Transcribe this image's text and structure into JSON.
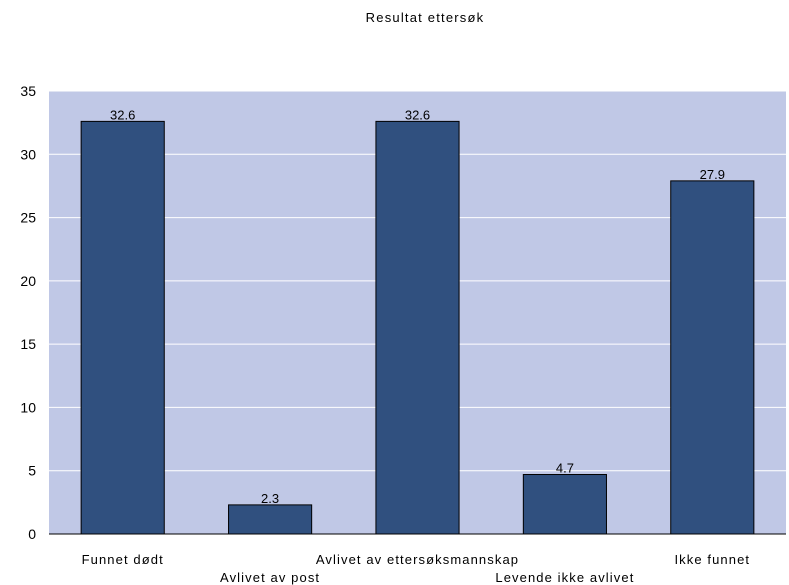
{
  "chart_data": {
    "type": "bar",
    "title": "Resultat ettersøk",
    "categories": [
      "Funnet dødt",
      "Avlivet av post",
      "Avlivet av ettersøksmannskap",
      "Levende ikke avlivet",
      "Ikke funnet"
    ],
    "values": [
      32.6,
      2.3,
      32.6,
      4.7,
      27.9
    ],
    "data_labels": [
      "32.6",
      "2.3",
      "32.6",
      "4.7",
      "27.9"
    ],
    "ylim": [
      0,
      35
    ],
    "yticks": [
      0,
      5,
      10,
      15,
      20,
      25,
      30,
      35
    ],
    "grid": true,
    "legend": "none",
    "colors": {
      "bar": "#30507f",
      "bar_edge": "#000000",
      "plot_background": "#c0c8e6",
      "gridline": "#ffffff"
    }
  }
}
